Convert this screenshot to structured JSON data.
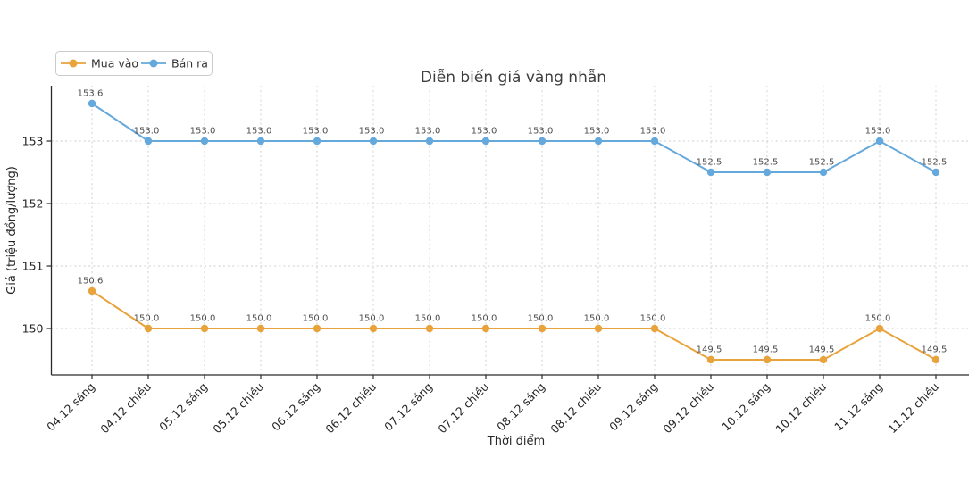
{
  "chart_data": {
    "type": "line",
    "title": "Diễn biến giá vàng nhẫn",
    "xlabel": "Thời điểm",
    "ylabel": "Giá (triệu đồng/lượng)",
    "categories": [
      "04.12 sáng",
      "04.12 chiều",
      "05.12 sáng",
      "05.12 chiều",
      "06.12 sáng",
      "06.12 chiều",
      "07.12 sáng",
      "07.12 chiều",
      "08.12 sáng",
      "08.12 chiều",
      "09.12 sáng",
      "09.12 chiều",
      "10.12 sáng",
      "10.12 chiều",
      "11.12 sáng",
      "11.12 chiều"
    ],
    "series": [
      {
        "name": "Mua vào",
        "color": "#e8a33c",
        "values": [
          150.6,
          150.0,
          150.0,
          150.0,
          150.0,
          150.0,
          150.0,
          150.0,
          150.0,
          150.0,
          150.0,
          149.5,
          149.5,
          149.5,
          150.0,
          149.5
        ]
      },
      {
        "name": "Bán ra",
        "color": "#64a8dc",
        "values": [
          153.6,
          153.0,
          153.0,
          153.0,
          153.0,
          153.0,
          153.0,
          153.0,
          153.0,
          153.0,
          153.0,
          152.5,
          152.5,
          152.5,
          153.0,
          152.5
        ]
      }
    ],
    "yticks": [
      150,
      151,
      152,
      153
    ],
    "ylim": [
      149.26,
      153.9
    ],
    "grid": true,
    "grid_style": "dashed",
    "legend_position": "top-left",
    "point_labels": true,
    "point_label_decimals": 1
  },
  "style": {
    "grid_color": "#cccccc",
    "spine_color": "#2b2b2b",
    "tick_label_color": "#262626",
    "point_label_color": "#4d4d4d",
    "title_color": "#3d3d3d",
    "legend_border_color": "#cccccc",
    "background": "#ffffff"
  }
}
